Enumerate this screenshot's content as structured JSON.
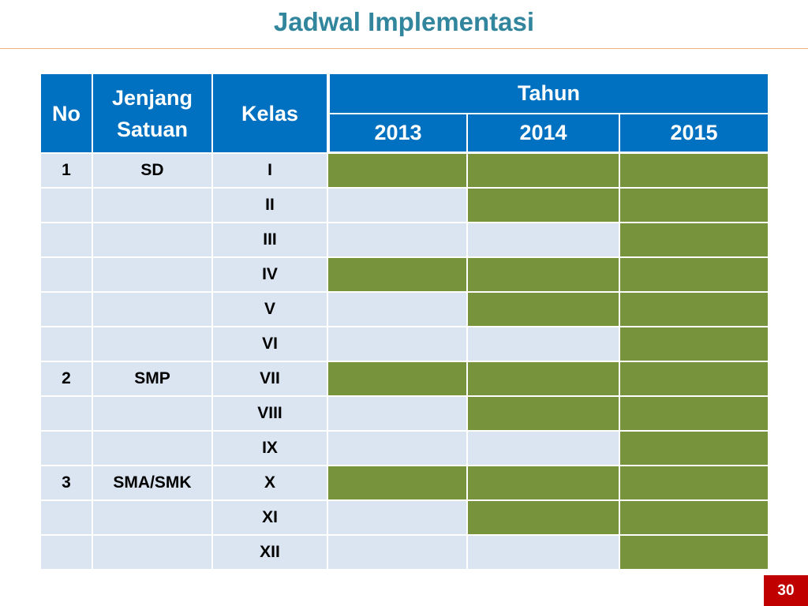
{
  "slide": {
    "title": "Jadwal Implementasi",
    "page_number": "30"
  },
  "colors": {
    "title": "#31859c",
    "header_bg": "#0070c0",
    "cell_bg": "#dbe5f1",
    "implemented": "#77933c",
    "page_badge": "#c00000"
  },
  "table": {
    "headers": {
      "no": "No",
      "jenjang": "Jenjang Satuan",
      "kelas": "Kelas",
      "tahun": "Tahun"
    },
    "years": [
      "2013",
      "2014",
      "2015"
    ],
    "rows": [
      {
        "no": "1",
        "jenjang": "SD",
        "kelas": "I",
        "active": [
          true,
          true,
          true
        ]
      },
      {
        "no": "",
        "jenjang": "",
        "kelas": "II",
        "active": [
          false,
          true,
          true
        ]
      },
      {
        "no": "",
        "jenjang": "",
        "kelas": "III",
        "active": [
          false,
          false,
          true
        ]
      },
      {
        "no": "",
        "jenjang": "",
        "kelas": "IV",
        "active": [
          true,
          true,
          true
        ]
      },
      {
        "no": "",
        "jenjang": "",
        "kelas": "V",
        "active": [
          false,
          true,
          true
        ]
      },
      {
        "no": "",
        "jenjang": "",
        "kelas": "VI",
        "active": [
          false,
          false,
          true
        ]
      },
      {
        "no": "2",
        "jenjang": "SMP",
        "kelas": "VII",
        "active": [
          true,
          true,
          true
        ]
      },
      {
        "no": "",
        "jenjang": "",
        "kelas": "VIII",
        "active": [
          false,
          true,
          true
        ]
      },
      {
        "no": "",
        "jenjang": "",
        "kelas": "IX",
        "active": [
          false,
          false,
          true
        ]
      },
      {
        "no": "3",
        "jenjang": "SMA/SMK",
        "kelas": "X",
        "active": [
          true,
          true,
          true
        ]
      },
      {
        "no": "",
        "jenjang": "",
        "kelas": "XI",
        "active": [
          false,
          true,
          true
        ]
      },
      {
        "no": "",
        "jenjang": "",
        "kelas": "XII",
        "active": [
          false,
          false,
          true
        ]
      }
    ]
  }
}
